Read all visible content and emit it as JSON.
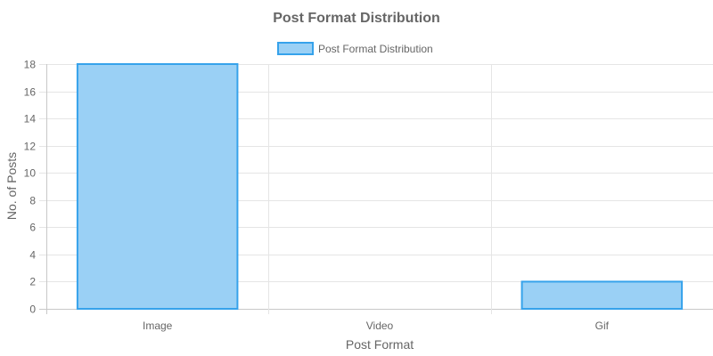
{
  "chart_data": {
    "type": "bar",
    "title": "Post Format Distribution",
    "categories": [
      "Image",
      "Video",
      "Gif"
    ],
    "series": [
      {
        "name": "Post Format Distribution",
        "values": [
          18,
          0,
          2
        ]
      }
    ],
    "xlabel": "Post Format",
    "ylabel": "No. of Posts",
    "ylim": [
      0,
      18
    ],
    "yticks": [
      0,
      2,
      4,
      6,
      8,
      10,
      12,
      14,
      16,
      18
    ],
    "grid": true,
    "legend_position": "top",
    "colors": {
      "bar_fill": "#9ad0f5",
      "bar_border": "#36a2eb",
      "grid": "#e5e5e5",
      "text": "#666666"
    }
  }
}
